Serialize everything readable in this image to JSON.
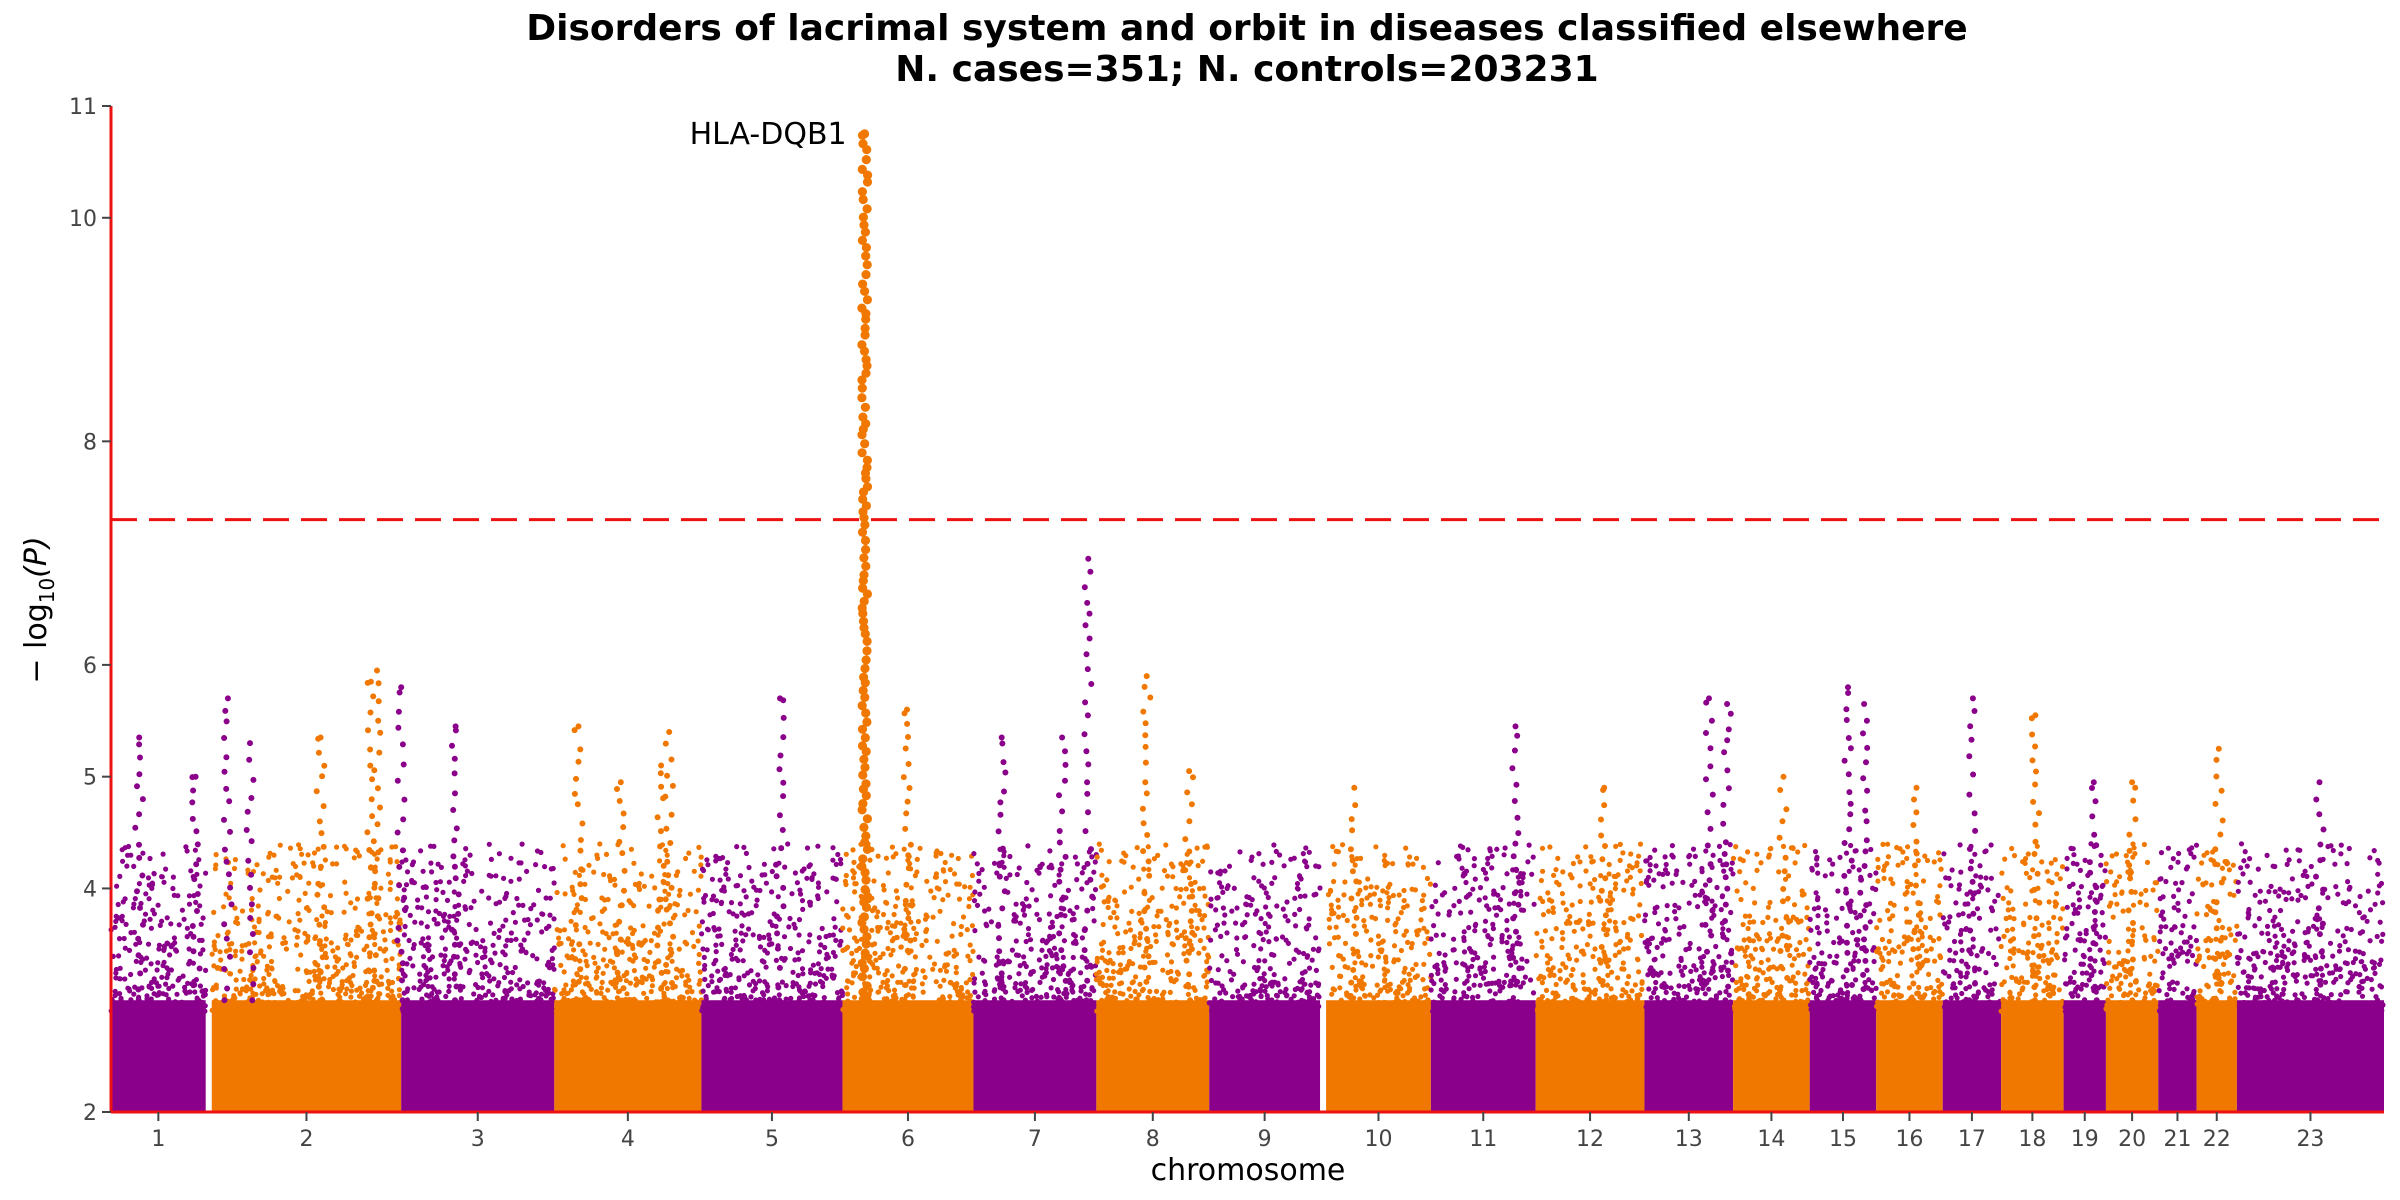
{
  "chart_data": {
    "type": "scatter",
    "subtype": "manhattan",
    "title": "Disorders of lacrimal system and orbit in diseases classified elsewhere",
    "subtitle": "N. cases=351; N. controls=203231",
    "xlabel": "chromosome",
    "ylabel": "−log10(P)",
    "ylabel_main": "− log",
    "ylabel_sub": "10",
    "ylabel_tail": "(P)",
    "ylim": [
      2,
      11
    ],
    "yticks": [
      2,
      4,
      5,
      6,
      8,
      10,
      11
    ],
    "significance_line": 7.3,
    "threshold_color": "#ee1111",
    "colors": [
      "#8b008b",
      "#f07800"
    ],
    "axis_color": "#ee1111",
    "chromosomes": [
      "1",
      "2",
      "3",
      "4",
      "5",
      "6",
      "7",
      "8",
      "9",
      "10",
      "11",
      "12",
      "13",
      "14",
      "15",
      "16",
      "17",
      "18",
      "19",
      "20",
      "21",
      "22",
      "23"
    ],
    "chromosome_spans": [
      {
        "chr": "1",
        "start": 0,
        "end": 4.7
      },
      {
        "chr": "2",
        "start": 5.0,
        "end": 14.4
      },
      {
        "chr": "3",
        "start": 14.4,
        "end": 22.0
      },
      {
        "chr": "4",
        "start": 22.0,
        "end": 29.3
      },
      {
        "chr": "5",
        "start": 29.3,
        "end": 36.3
      },
      {
        "chr": "6",
        "start": 36.3,
        "end": 42.8
      },
      {
        "chr": "7",
        "start": 42.8,
        "end": 48.9
      },
      {
        "chr": "8",
        "start": 48.9,
        "end": 54.5
      },
      {
        "chr": "9",
        "start": 54.5,
        "end": 60.0
      },
      {
        "chr": "10",
        "start": 60.3,
        "end": 65.5
      },
      {
        "chr": "11",
        "start": 65.5,
        "end": 70.7
      },
      {
        "chr": "12",
        "start": 70.7,
        "end": 76.1
      },
      {
        "chr": "13",
        "start": 76.1,
        "end": 80.5
      },
      {
        "chr": "14",
        "start": 80.5,
        "end": 84.3
      },
      {
        "chr": "15",
        "start": 84.3,
        "end": 87.6
      },
      {
        "chr": "16",
        "start": 87.6,
        "end": 90.9
      },
      {
        "chr": "17",
        "start": 90.9,
        "end": 93.8
      },
      {
        "chr": "18",
        "start": 93.8,
        "end": 96.9
      },
      {
        "chr": "19",
        "start": 96.9,
        "end": 99.0
      },
      {
        "chr": "20",
        "start": 99.0,
        "end": 101.6
      },
      {
        "chr": "21",
        "start": 101.6,
        "end": 103.5
      },
      {
        "chr": "22",
        "start": 103.5,
        "end": 105.5
      },
      {
        "chr": "23",
        "start": 105.5,
        "end": 112.8
      }
    ],
    "x_range": [
      0,
      112.8
    ],
    "peaks": [
      {
        "chr": "1",
        "pos": 1.4,
        "top": 5.35
      },
      {
        "chr": "1",
        "pos": 4.2,
        "top": 5.0
      },
      {
        "chr": "1",
        "pos": 5.8,
        "top": 5.7
      },
      {
        "chr": "1",
        "pos": 6.9,
        "top": 5.3
      },
      {
        "chr": "2",
        "pos": 10.4,
        "top": 5.35
      },
      {
        "chr": "2",
        "pos": 12.9,
        "top": 5.85
      },
      {
        "chr": "2",
        "pos": 13.2,
        "top": 5.95
      },
      {
        "chr": "3",
        "pos": 14.4,
        "top": 5.8
      },
      {
        "chr": "3",
        "pos": 17.1,
        "top": 5.45
      },
      {
        "chr": "4",
        "pos": 23.2,
        "top": 5.45
      },
      {
        "chr": "4",
        "pos": 25.3,
        "top": 4.95
      },
      {
        "chr": "4",
        "pos": 27.3,
        "top": 5.1
      },
      {
        "chr": "4",
        "pos": 27.7,
        "top": 5.4
      },
      {
        "chr": "5",
        "pos": 33.2,
        "top": 5.7
      },
      {
        "chr": "6",
        "pos": 37.4,
        "top": 10.75
      },
      {
        "chr": "6",
        "pos": 39.5,
        "top": 5.6
      },
      {
        "chr": "7",
        "pos": 44.2,
        "top": 5.35
      },
      {
        "chr": "7",
        "pos": 48.5,
        "top": 6.95
      },
      {
        "chr": "7",
        "pos": 47.2,
        "top": 5.35
      },
      {
        "chr": "8",
        "pos": 51.4,
        "top": 5.9
      },
      {
        "chr": "8",
        "pos": 53.5,
        "top": 5.05
      },
      {
        "chr": "10",
        "pos": 61.7,
        "top": 4.9
      },
      {
        "chr": "11",
        "pos": 69.7,
        "top": 5.45
      },
      {
        "chr": "12",
        "pos": 74.1,
        "top": 4.9
      },
      {
        "chr": "13",
        "pos": 79.3,
        "top": 5.7
      },
      {
        "chr": "13",
        "pos": 80.2,
        "top": 5.65
      },
      {
        "chr": "14",
        "pos": 83.0,
        "top": 5.0
      },
      {
        "chr": "15",
        "pos": 86.2,
        "top": 5.8
      },
      {
        "chr": "15",
        "pos": 87.0,
        "top": 5.65
      },
      {
        "chr": "16",
        "pos": 89.6,
        "top": 4.9
      },
      {
        "chr": "17",
        "pos": 92.4,
        "top": 5.7
      },
      {
        "chr": "18",
        "pos": 95.5,
        "top": 5.55
      },
      {
        "chr": "19",
        "pos": 98.4,
        "top": 4.95
      },
      {
        "chr": "20",
        "pos": 100.3,
        "top": 4.95
      },
      {
        "chr": "22",
        "pos": 104.6,
        "top": 5.25
      },
      {
        "chr": "23",
        "pos": 109.6,
        "top": 4.95
      }
    ],
    "annotations": [
      {
        "text": "HLA-DQB1",
        "chr": "6",
        "pos": 37.4,
        "y": 10.75
      }
    ]
  }
}
